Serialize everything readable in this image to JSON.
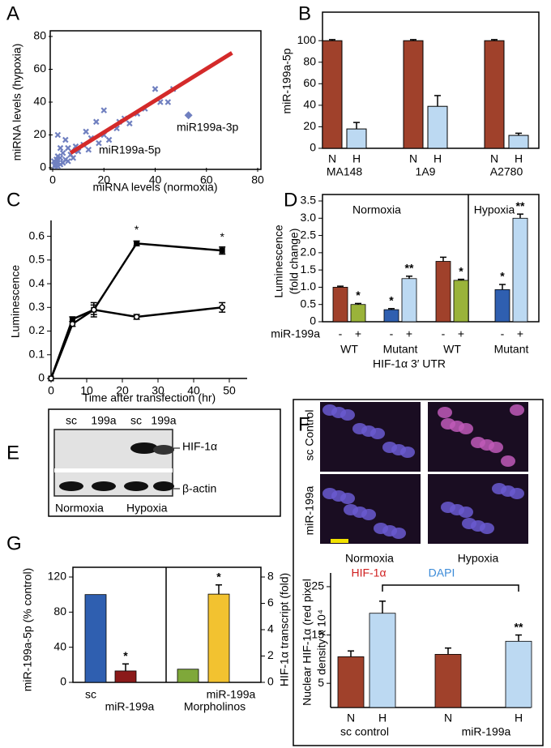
{
  "chart_data": [
    {
      "type": "scatter",
      "panel": "A",
      "xlabel": "miRNA levels (normoxia)",
      "ylabel": "miRNA levels (hypoxia)",
      "xlim": [
        0,
        80
      ],
      "ylim": [
        0,
        80
      ],
      "xticks": [
        0,
        20,
        40,
        60,
        80
      ],
      "yticks": [
        0,
        20,
        40,
        60,
        80
      ],
      "series": [
        {
          "marker": "x",
          "color": "#7080c0",
          "x": [
            1,
            1,
            2,
            2,
            3,
            0.5,
            1.5,
            3,
            4,
            5,
            2,
            6,
            4,
            7,
            3,
            8,
            10,
            9,
            12,
            5,
            14,
            15,
            13,
            18,
            20,
            22,
            25,
            17,
            20,
            26,
            28,
            30,
            33,
            42,
            40,
            45,
            47,
            36,
            2,
            6
          ],
          "y": [
            1,
            2,
            1,
            3,
            2,
            4,
            5,
            6,
            3,
            5,
            7,
            4,
            9,
            8,
            12,
            6,
            10,
            13,
            14,
            17,
            11,
            18,
            22,
            15,
            20,
            17,
            24,
            28,
            35,
            28,
            30,
            27,
            33,
            40,
            48,
            40,
            48,
            36,
            20,
            12
          ]
        },
        {
          "marker": "diamond",
          "color": "#7080c0",
          "x": [
            53,
            9
          ],
          "y": [
            32,
            11
          ]
        }
      ],
      "fit": {
        "x": [
          7,
          70
        ],
        "y": [
          9,
          70
        ],
        "color": "#d42a2a"
      },
      "annotations": [
        "miR199a-3p",
        "miR199a-5p"
      ]
    },
    {
      "type": "grouped-bar",
      "panel": "B",
      "ylabel": "miR-199a-5p",
      "ylim": [
        0,
        125
      ],
      "yticks": [
        0,
        20,
        40,
        60,
        80,
        100
      ],
      "categories": [
        "MA148",
        "1A9",
        "A2780"
      ],
      "series": [
        {
          "name": "N",
          "color": "#a0412b",
          "values": [
            100,
            100,
            100
          ],
          "errors": [
            1,
            1,
            1
          ]
        },
        {
          "name": "H",
          "color": "#bcd9f2",
          "values": [
            18,
            39,
            12
          ],
          "errors": [
            6,
            10,
            2
          ]
        }
      ]
    },
    {
      "type": "line",
      "panel": "C",
      "xlabel": "Time after transfection (hr)",
      "ylabel": "Luminescence",
      "xlim": [
        0,
        55
      ],
      "ylim": [
        0,
        0.65
      ],
      "xticks": [
        0,
        10,
        20,
        30,
        40,
        50
      ],
      "yticks": [
        0,
        0.1,
        0.2,
        0.3,
        0.4,
        0.5,
        0.6
      ],
      "x": [
        0,
        6,
        12,
        24,
        48
      ],
      "series": [
        {
          "marker": "square",
          "color": "#000000",
          "values": [
            0,
            0.25,
            0.29,
            0.57,
            0.54
          ],
          "errors": [
            0,
            0.01,
            0.02,
            0.01,
            0.015
          ],
          "labels": [
            null,
            null,
            null,
            "*",
            "*"
          ]
        },
        {
          "marker": "circle",
          "color": "#000000",
          "values": [
            0,
            0.23,
            0.29,
            0.26,
            0.3
          ],
          "errors": [
            0,
            0.01,
            0.03,
            0.01,
            0.02
          ]
        }
      ]
    },
    {
      "type": "bar",
      "panel": "D",
      "ylabel": [
        "Luminescence",
        "(fold change)"
      ],
      "ylim": [
        0,
        3.5
      ],
      "yticks": [
        0,
        0.5,
        {
          "value": 1,
          "label": "1.0"
        },
        1.5,
        {
          "value": 2,
          "label": "2.0"
        },
        2.5,
        {
          "value": 3,
          "label": "3.0"
        },
        3.5
      ],
      "categories": [
        "-",
        "+",
        "-",
        "+",
        "-",
        "+",
        "-",
        "+"
      ],
      "row_label": "miR-199a",
      "groups": [
        "WT",
        "Mutant",
        "WT",
        "Mutant"
      ],
      "sections": [
        "Normoxia",
        "Hypoxia"
      ],
      "group_caption": "HIF-1α 3′ UTR",
      "series": [
        {
          "values": [
            1.0,
            0.5,
            0.35,
            1.25,
            1.75,
            1.2,
            0.93,
            3.0
          ],
          "errors": [
            0.03,
            0.03,
            0.03,
            0.07,
            0.12,
            0.03,
            0.15,
            0.12
          ],
          "colors": [
            "#a0412b",
            "#9ab33a",
            "#2f5fb0",
            "#bcd9f2",
            "#a0412b",
            "#9ab33a",
            "#2f5fb0",
            "#bcd9f2"
          ],
          "labels": [
            null,
            "*",
            "*",
            "**",
            null,
            "*",
            "*",
            "**"
          ]
        }
      ]
    },
    {
      "type": "bar",
      "ylabel": [
        "Nuclear HIF-1α (red pixel",
        "density  x 10⁴"
      ],
      "ylim": [
        0,
        27
      ],
      "yticks": [
        5,
        15,
        25
      ],
      "categories": [
        "N",
        "H",
        "N",
        "H"
      ],
      "groups": [
        "sc control",
        "miR-199a"
      ],
      "series": [
        {
          "values": [
            10.5,
            19.5,
            11,
            13.7
          ],
          "errors": [
            1.2,
            2.5,
            1.3,
            1.3
          ],
          "colors": [
            "#a0412b",
            "#bcd9f2",
            "#a0412b",
            "#bcd9f2"
          ],
          "labels": [
            null,
            null,
            null,
            "**"
          ]
        }
      ]
    },
    {
      "type": "bar",
      "panel": "G",
      "ylabel": [
        "miR-199a-5p (% control)"
      ],
      "y2label": "HIF-1α transcript (fold)",
      "ylim": [
        0,
        120
      ],
      "yticks": [
        0,
        40,
        80,
        120
      ],
      "y2lim": [
        0,
        8
      ],
      "y2ticks": [
        0,
        2,
        4,
        6,
        8
      ],
      "categories": [
        "sc",
        "miR-199a",
        null,
        "miR-199a"
      ],
      "footer": "Morpholinos",
      "series": [
        {
          "axis": "y",
          "values": [
            100,
            13,
            null,
            null
          ],
          "errors": [
            0,
            8,
            null,
            null
          ],
          "colors": [
            "#2f5fb0",
            "#8b1a1a",
            null,
            null
          ],
          "labels": [
            null,
            "*",
            null,
            null
          ]
        },
        {
          "axis": "y2",
          "values": [
            null,
            null,
            1.0,
            6.7
          ],
          "errors": [
            null,
            null,
            0,
            0.7
          ],
          "colors": [
            null,
            null,
            "#7fa83a",
            "#f2c230"
          ],
          "labels": [
            null,
            null,
            null,
            "*"
          ]
        }
      ]
    }
  ],
  "blot": {
    "panel": "E",
    "lanes": [
      "sc",
      "199a",
      "sc",
      "199a"
    ],
    "bands": [
      "HIF-1α",
      "β-actin"
    ],
    "conditions": [
      "Normoxia",
      "Hypoxia"
    ]
  },
  "micrographs": {
    "panel": "F",
    "rows": [
      "sc Control",
      "miR-199a"
    ],
    "columns": [
      "Normoxia",
      "Hypoxia"
    ],
    "stains": [
      "HIF-1α",
      "DAPI"
    ]
  }
}
